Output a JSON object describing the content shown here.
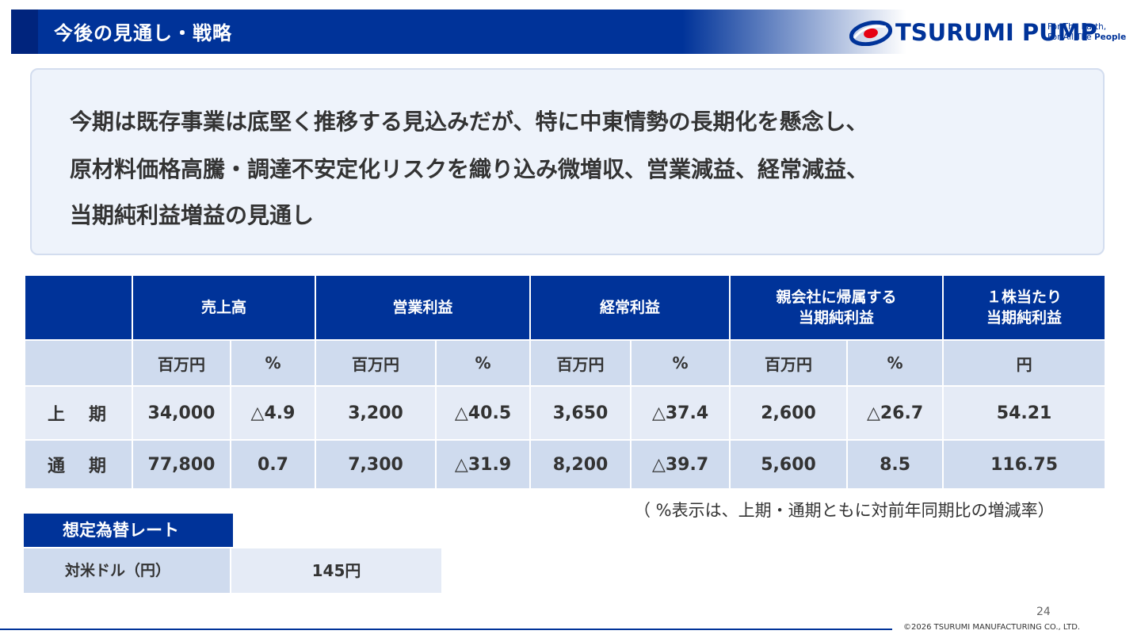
{
  "header": {
    "title": "今後の見通し・戦略",
    "logo_text": "TSURUMI PUMP",
    "tagline_1": "For The Earth,",
    "tagline_2_prefix": "For All The ",
    "tagline_2_bold": "People"
  },
  "summary": {
    "line_1": "今期は既存事業は底堅く推移する見込みだが、特に中東情勢の長期化を懸念し、",
    "line_2": "原材料価格高騰・調達不安定化リスクを織り込み微増収、営業減益、経常減益、",
    "line_3": "当期純利益増益の見通し"
  },
  "table": {
    "headers": {
      "sales": "売上高",
      "operating": "営業利益",
      "ordinary": "経常利益",
      "net_line1": "親会社に帰属する",
      "net_line2": "当期純利益",
      "eps_line1": "１株当たり",
      "eps_line2": "当期純利益"
    },
    "units": {
      "million": "百万円",
      "percent": "%",
      "yen": "円"
    },
    "rows": [
      {
        "label": "上　期",
        "sales": "34,000",
        "sales_pct": "△4.9",
        "operating": "3,200",
        "operating_pct": "△40.5",
        "ordinary": "3,650",
        "ordinary_pct": "△37.4",
        "net": "2,600",
        "net_pct": "△26.7",
        "eps": "54.21"
      },
      {
        "label": "通　期",
        "sales": "77,800",
        "sales_pct": "0.7",
        "operating": "7,300",
        "operating_pct": "△31.9",
        "ordinary": "8,200",
        "ordinary_pct": "△39.7",
        "net": "5,600",
        "net_pct": "8.5",
        "eps": "116.75"
      }
    ]
  },
  "note": "（ %表示は、上期・通期ともに対前年同期比の増減率）",
  "fx": {
    "title": "想定為替レート",
    "label": "対米ドル（円）",
    "value": "145円"
  },
  "footer": {
    "page_number": "24",
    "copyright": "©2026 TSURUMI MANUFACTURING CO., LTD."
  },
  "colors": {
    "brand_blue": "#003399",
    "light_row": "#e5ebf6",
    "mid_row": "#cfdbee",
    "summary_bg": "#eef3fb"
  }
}
